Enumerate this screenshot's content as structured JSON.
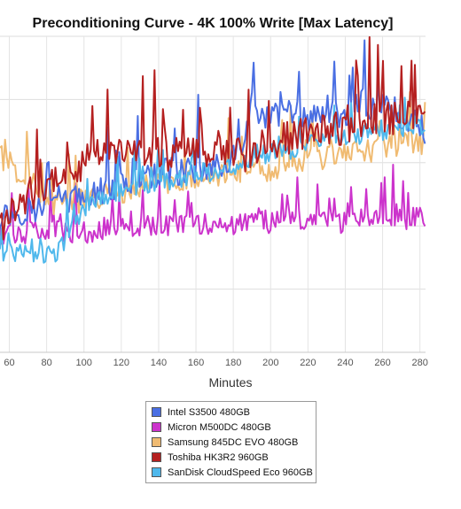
{
  "chart_data": {
    "type": "line",
    "title": "Preconditioning Curve - 4K 100% Write [Max Latency]",
    "xlabel": "Minutes",
    "ylabel": "",
    "xlim": [
      55,
      283
    ],
    "ylim": [
      0,
      100
    ],
    "x_ticks": [
      60,
      80,
      100,
      120,
      140,
      160,
      180,
      200,
      220,
      240,
      260,
      280
    ],
    "grid": true,
    "legend_position": "bottom-center",
    "series": [
      {
        "name": "Intel S3500 480GB",
        "color": "#4a6fe3",
        "x": [
          55,
          70,
          85,
          100,
          115,
          130,
          145,
          160,
          175,
          185,
          190,
          200,
          210,
          220,
          230,
          240,
          250,
          255,
          260,
          270,
          280,
          283
        ],
        "y": [
          43,
          45,
          46,
          49,
          52,
          55,
          57,
          58,
          60,
          62,
          78,
          74,
          76,
          74,
          77,
          73,
          80,
          76,
          78,
          74,
          72,
          70
        ]
      },
      {
        "name": "Micron M500DC 480GB",
        "color": "#cc33cc",
        "x": [
          55,
          70,
          85,
          100,
          115,
          130,
          145,
          160,
          175,
          185,
          190,
          200,
          210,
          220,
          230,
          240,
          250,
          255,
          260,
          270,
          280,
          283
        ],
        "y": [
          37,
          38,
          38,
          38,
          39,
          40,
          40,
          41,
          40,
          41,
          43,
          41,
          42,
          41,
          42,
          41,
          43,
          42,
          43,
          42,
          43,
          42
        ]
      },
      {
        "name": "Samsung 845DC EVO 480GB",
        "color": "#f0bb72",
        "x": [
          55,
          70,
          85,
          100,
          115,
          130,
          145,
          160,
          175,
          185,
          190,
          200,
          210,
          220,
          230,
          240,
          250,
          255,
          260,
          270,
          280,
          283
        ],
        "y": [
          62,
          55,
          47,
          48,
          50,
          52,
          54,
          55,
          56,
          57,
          57,
          58,
          60,
          61,
          62,
          63,
          64,
          64,
          65,
          66,
          66,
          66
        ]
      },
      {
        "name": "Toshiba HK3R2 960GB",
        "color": "#b52020",
        "x": [
          55,
          70,
          85,
          100,
          115,
          130,
          145,
          160,
          175,
          185,
          190,
          200,
          210,
          220,
          230,
          240,
          250,
          255,
          260,
          270,
          280,
          283
        ],
        "y": [
          40,
          50,
          55,
          60,
          63,
          63,
          62,
          64,
          63,
          62,
          64,
          66,
          68,
          70,
          70,
          71,
          72,
          74,
          75,
          73,
          74,
          73
        ]
      },
      {
        "name": "SanDisk CloudSpeed Eco 960GB",
        "color": "#4fb8ec",
        "x": [
          55,
          70,
          85,
          100,
          115,
          130,
          145,
          160,
          175,
          185,
          190,
          200,
          210,
          220,
          230,
          240,
          250,
          255,
          260,
          270,
          280,
          283
        ],
        "y": [
          32,
          31,
          31,
          46,
          50,
          52,
          54,
          56,
          58,
          60,
          62,
          63,
          64,
          66,
          67,
          68,
          69,
          70,
          70,
          71,
          72,
          72
        ]
      }
    ]
  }
}
